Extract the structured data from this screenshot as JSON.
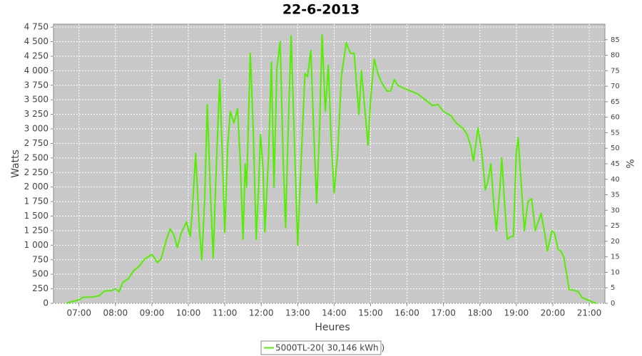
{
  "chart_data": {
    "type": "line",
    "title": "22-6-2013",
    "x_label": "Heures",
    "y_label": "Watts",
    "y2_label": "%",
    "xlim": [
      6.3,
      21.43
    ],
    "xticks": [
      {
        "value": 7,
        "label": "07:00"
      },
      {
        "value": 8,
        "label": "08:00"
      },
      {
        "value": 9,
        "label": "09:00"
      },
      {
        "value": 10,
        "label": "10:00"
      },
      {
        "value": 11,
        "label": "11:00"
      },
      {
        "value": 12,
        "label": "12:00"
      },
      {
        "value": 13,
        "label": "13:00"
      },
      {
        "value": 14,
        "label": "14:00"
      },
      {
        "value": 15,
        "label": "15:00"
      },
      {
        "value": 16,
        "label": "16:00"
      },
      {
        "value": 17,
        "label": "17:00"
      },
      {
        "value": 18,
        "label": "18:00"
      },
      {
        "value": 19,
        "label": "19:00"
      },
      {
        "value": 20,
        "label": "20:00"
      },
      {
        "value": 21,
        "label": "21:00"
      }
    ],
    "ylim": [
      0,
      4800
    ],
    "yticks": [
      0,
      250,
      500,
      750,
      {
        "value": 1000,
        "label": "1 000"
      },
      {
        "value": 1250,
        "label": "1 250"
      },
      {
        "value": 1500,
        "label": "1 500"
      },
      {
        "value": 1750,
        "label": "1 750"
      },
      {
        "value": 2000,
        "label": "2 000"
      },
      {
        "value": 2250,
        "label": "2 250"
      },
      {
        "value": 2500,
        "label": "2 500"
      },
      {
        "value": 2750,
        "label": "2 750"
      },
      {
        "value": 3000,
        "label": "3 000"
      },
      {
        "value": 3250,
        "label": "3 250"
      },
      {
        "value": 3500,
        "label": "3 500"
      },
      {
        "value": 3750,
        "label": "3 750"
      },
      {
        "value": 4000,
        "label": "4 000"
      },
      {
        "value": 4250,
        "label": "4 250"
      },
      {
        "value": 4500,
        "label": "4 500"
      },
      {
        "value": 4750,
        "label": "4 750"
      }
    ],
    "y2lim": [
      0,
      90
    ],
    "y2ticks": [
      0,
      5,
      10,
      15,
      20,
      25,
      30,
      35,
      40,
      45,
      50,
      55,
      60,
      65,
      70,
      75,
      80,
      85
    ],
    "grid": true,
    "legend": "bottom",
    "x": [
      6.65,
      6.8,
      7.0,
      7.1,
      7.4,
      7.55,
      7.7,
      7.9,
      8.0,
      8.1,
      8.2,
      8.35,
      8.5,
      8.65,
      8.8,
      9.0,
      9.05,
      9.15,
      9.25,
      9.4,
      9.5,
      9.6,
      9.7,
      9.8,
      9.95,
      10.05,
      10.1,
      10.2,
      10.3,
      10.37,
      10.45,
      10.52,
      10.6,
      10.68,
      10.77,
      10.86,
      10.93,
      11.0,
      11.08,
      11.15,
      11.25,
      11.35,
      11.42,
      11.5,
      11.56,
      11.6,
      11.7,
      11.78,
      11.86,
      11.93,
      11.98,
      12.05,
      12.1,
      12.2,
      12.28,
      12.35,
      12.43,
      12.52,
      12.6,
      12.67,
      12.75,
      12.82,
      12.9,
      13.0,
      13.1,
      13.2,
      13.27,
      13.36,
      13.45,
      13.52,
      13.6,
      13.67,
      13.76,
      13.84,
      13.92,
      14.0,
      14.1,
      14.2,
      14.33,
      14.45,
      14.55,
      14.68,
      14.75,
      14.85,
      14.93,
      15.0,
      15.1,
      15.2,
      15.3,
      15.45,
      15.55,
      15.65,
      15.75,
      15.9,
      16.1,
      16.3,
      16.5,
      16.7,
      16.85,
      17.0,
      17.2,
      17.35,
      17.55,
      17.65,
      17.75,
      17.82,
      17.88,
      17.95,
      18.05,
      18.15,
      18.22,
      18.3,
      18.38,
      18.45,
      18.55,
      18.6,
      18.68,
      18.75,
      18.85,
      18.92,
      19.0,
      19.05,
      19.15,
      19.22,
      19.32,
      19.42,
      19.52,
      19.6,
      19.68,
      19.78,
      19.85,
      19.98,
      20.05,
      20.15,
      20.22,
      20.3,
      20.38,
      20.45,
      20.55,
      20.7,
      20.8,
      20.95,
      21.1,
      21.2
    ],
    "series": [
      {
        "name": "5000TL-20( 30,146 kWh )",
        "color": "#55ee00",
        "values": [
          0,
          30,
          60,
          100,
          110,
          130,
          210,
          220,
          250,
          200,
          360,
          420,
          560,
          640,
          760,
          840,
          800,
          700,
          760,
          1100,
          1280,
          1180,
          960,
          1200,
          1400,
          1150,
          1500,
          2580,
          1300,
          750,
          1800,
          3420,
          2000,
          780,
          2400,
          3850,
          2600,
          1220,
          2700,
          3300,
          3100,
          3350,
          2500,
          1100,
          2400,
          2000,
          4300,
          3000,
          1100,
          2000,
          2900,
          2300,
          1230,
          2500,
          4150,
          2000,
          4050,
          4500,
          2500,
          1300,
          3200,
          4600,
          3000,
          1000,
          2500,
          3950,
          3900,
          4350,
          2800,
          1720,
          3000,
          4620,
          3300,
          4100,
          2800,
          1900,
          2600,
          3900,
          4480,
          4300,
          4300,
          3250,
          4000,
          3300,
          2720,
          3500,
          4200,
          3950,
          3800,
          3650,
          3650,
          3850,
          3750,
          3700,
          3650,
          3600,
          3500,
          3400,
          3420,
          3300,
          3230,
          3100,
          3000,
          2900,
          2700,
          2450,
          2700,
          3020,
          2600,
          1950,
          2100,
          2400,
          1700,
          1250,
          2000,
          2500,
          1700,
          1100,
          1150,
          1150,
          2600,
          2850,
          1900,
          1250,
          1750,
          1800,
          1250,
          1400,
          1550,
          1200,
          900,
          1250,
          1200,
          920,
          900,
          800,
          500,
          230,
          230,
          200,
          100,
          60,
          20,
          0
        ]
      }
    ]
  }
}
